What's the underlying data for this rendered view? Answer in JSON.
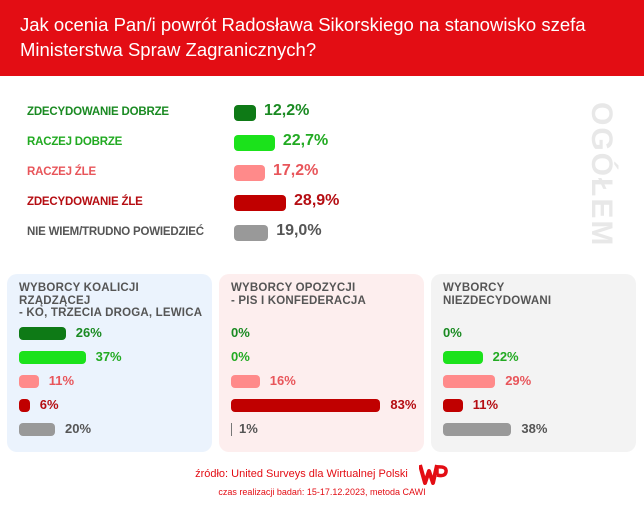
{
  "title": "Jak ocenia Pan/i powrót Radosława Sikorskiego na stanowisko szefa Ministerstwa Spraw Zagranicznych?",
  "side_label": "OGÓŁEM",
  "colors": {
    "header": "#e30d14",
    "zdecydowanie_dobrze": "#0e7a16",
    "raczej_dobrze": "#1be21b",
    "raczej_zle": "#ff8a8a",
    "zdecydowanie_zle": "#c00000",
    "nie_wiem": "#999999"
  },
  "chart_data": [
    {
      "type": "bar",
      "title": "OGÓŁEM",
      "categories": [
        "ZDECYDOWANIE DOBRZE",
        "RACZEJ DOBRZE",
        "RACZEJ ŹLE",
        "ZDECYDOWANIE ŹLE",
        "NIE WIEM/TRUDNO POWIEDZIEĆ"
      ],
      "values": [
        12.2,
        22.7,
        17.2,
        28.9,
        19.0
      ],
      "labels": [
        "12,2%",
        "22,7%",
        "17,2%",
        "28,9%",
        "19,0%"
      ],
      "value_colors": [
        "#1a8a22",
        "#22aa22",
        "#e8555a",
        "#b50d12",
        "#555555"
      ]
    },
    {
      "type": "bar",
      "title": "WYBORCY KOALICJI RZĄDZĄCEJ\n- KO, TRZECIA DROGA, LEWICA",
      "title_lines": [
        "WYBORCY KOALICJI RZĄDZĄCEJ",
        "- KO, TRZECIA DROGA, LEWICA"
      ],
      "values": [
        26,
        37,
        11,
        6,
        20
      ],
      "labels": [
        "26%",
        "37%",
        "11%",
        "6%",
        "20%"
      ],
      "background": "#ebf3fd"
    },
    {
      "type": "bar",
      "title": "WYBORCY OPOZYCJI\n- PIS I KONFEDERACJA",
      "title_lines": [
        "WYBORCY OPOZYCJI",
        "- PIS I KONFEDERACJA"
      ],
      "values": [
        0,
        0,
        16,
        83,
        1
      ],
      "labels": [
        "0%",
        "0%",
        "16%",
        "83%",
        "1%"
      ],
      "background": "#fdeeee"
    },
    {
      "type": "bar",
      "title": "WYBORCY\nNIEZDECYDOWANI",
      "title_lines": [
        "WYBORCY",
        "NIEZDECYDOWANI"
      ],
      "values": [
        0,
        22,
        29,
        11,
        38
      ],
      "labels": [
        "0%",
        "22%",
        "29%",
        "11%",
        "38%"
      ],
      "background": "#f3f3f3"
    }
  ],
  "footer": {
    "source": "źródło: United Surveys dla Wirtualnej Polski",
    "logo": "WP",
    "method": "czas realizacji badań: 15-17.12.2023, metoda CAWI"
  }
}
